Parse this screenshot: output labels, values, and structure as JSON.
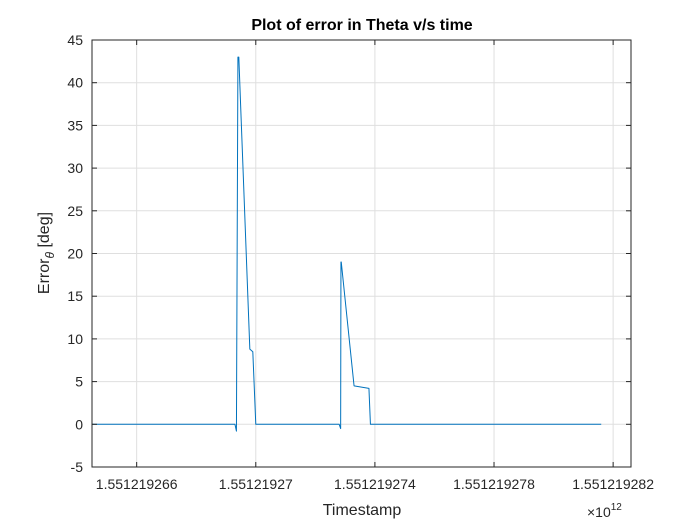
{
  "chart_data": {
    "type": "line",
    "title": "Plot of error in Theta v/s time",
    "xlabel": "Timestamp",
    "ylabel": "Error",
    "ylabel_subscript": "θ",
    "ylabel_unit": "[deg]",
    "x_exponent_base": "×10",
    "x_exponent_power": "12",
    "xlim": [
      1.5512192645,
      1.5512192826
    ],
    "ylim": [
      -5,
      45
    ],
    "grid": true,
    "x_ticks": [
      1.551219266,
      1.55121927,
      1.551219274,
      1.551219278,
      1.551219282
    ],
    "x_tick_labels": [
      "1.551219266",
      "1.55121927",
      "1.551219274",
      "1.551219278",
      "1.551219282"
    ],
    "y_ticks": [
      -5,
      0,
      5,
      10,
      15,
      20,
      25,
      30,
      35,
      40,
      45
    ],
    "y_tick_labels": [
      "-5",
      "0",
      "5",
      "10",
      "15",
      "20",
      "25",
      "30",
      "35",
      "40",
      "45"
    ],
    "series": [
      {
        "color": "#0072BD",
        "x": [
          1.5512192645,
          1.5512192693,
          1.55121926935,
          1.5512192694,
          1.55121926943,
          1.5512192698,
          1.5512192699,
          1.55121927,
          1.55121927005,
          1.5512192728,
          1.55121927285,
          1.55121927286,
          1.55121927287,
          1.5512192733,
          1.5512192738,
          1.55121927385,
          1.5512192739,
          1.5512192816
        ],
        "y": [
          0,
          0,
          -0.8,
          43,
          43,
          8.8,
          8.5,
          0,
          0,
          0,
          -0.5,
          19,
          19,
          4.5,
          4.2,
          0,
          0,
          0
        ]
      }
    ]
  }
}
